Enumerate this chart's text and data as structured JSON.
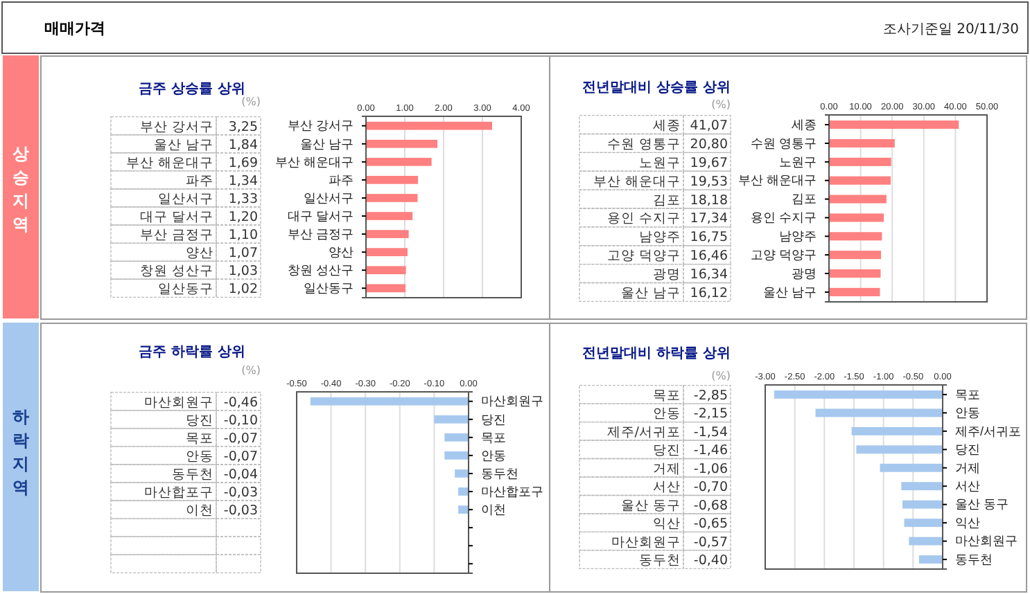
{
  "chart_data": [
    {
      "type": "bar",
      "orientation": "horizontal",
      "title": "금주 상승률 상위",
      "annotations": [
        "(%)",
        "매매가격",
        "조사기준일 20/11/30",
        "상승지역"
      ],
      "categories": [
        "부산 강서구",
        "울산 남구",
        "부산 해운대구",
        "파주",
        "일산서구",
        "대구 달서구",
        "부산 금정구",
        "양산",
        "창원 성산구",
        "일산동구"
      ],
      "values": [
        3.25,
        1.84,
        1.69,
        1.34,
        1.33,
        1.2,
        1.1,
        1.07,
        1.03,
        1.02
      ],
      "value_labels": [
        "3,25",
        "1,84",
        "1,69",
        "1,34",
        "1,33",
        "1,20",
        "1,10",
        "1,07",
        "1,03",
        "1,02"
      ],
      "color": "#ff8080",
      "xlim": [
        0,
        4
      ],
      "xticks": [
        {
          "value": 0,
          "label": "0.00"
        },
        {
          "value": 1,
          "label": "1.00"
        },
        {
          "value": 2,
          "label": "2.00"
        },
        {
          "value": 3,
          "label": "3.00"
        },
        {
          "value": 4,
          "label": "4.00"
        }
      ],
      "grid": "x"
    },
    {
      "type": "bar",
      "orientation": "horizontal",
      "title": "전년말대비 상승률 상위",
      "annotations": [
        "(%)"
      ],
      "categories": [
        "세종",
        "수원 영통구",
        "노원구",
        "부산 해운대구",
        "김포",
        "용인 수지구",
        "남양주",
        "고양 덕양구",
        "광명",
        "울산 남구"
      ],
      "values": [
        41.07,
        20.8,
        19.67,
        19.53,
        18.18,
        17.34,
        16.75,
        16.46,
        16.34,
        16.12
      ],
      "value_labels": [
        "41,07",
        "20,80",
        "19,67",
        "19,53",
        "18,18",
        "17,34",
        "16,75",
        "16,46",
        "16,34",
        "16,12"
      ],
      "color": "#ff8080",
      "xlim": [
        0,
        50
      ],
      "xticks": [
        {
          "value": 0,
          "label": "0.00"
        },
        {
          "value": 10,
          "label": "10.00"
        },
        {
          "value": 20,
          "label": "20.00"
        },
        {
          "value": 30,
          "label": "30.00"
        },
        {
          "value": 40,
          "label": "40.00"
        },
        {
          "value": 50,
          "label": "50.00"
        }
      ],
      "grid": "x"
    },
    {
      "type": "bar",
      "orientation": "horizontal",
      "title": "금주 하락률 상위",
      "annotations": [
        "(%)",
        "하락지역"
      ],
      "categories": [
        "마산회원구",
        "당진",
        "목포",
        "안동",
        "동두천",
        "마산합포구",
        "이천",
        null,
        null,
        null
      ],
      "values": [
        -0.46,
        -0.1,
        -0.07,
        -0.07,
        -0.04,
        -0.03,
        -0.03,
        null,
        null,
        null
      ],
      "value_labels": [
        "-0,46",
        "-0,10",
        "-0,07",
        "-0,07",
        "-0,04",
        "-0,03",
        "-0,03",
        null,
        null,
        null
      ],
      "color": "#a6c8ee",
      "xlim": [
        -0.5,
        0
      ],
      "xticks": [
        {
          "value": -0.5,
          "label": "-0.50"
        },
        {
          "value": -0.4,
          "label": "-0.40"
        },
        {
          "value": -0.3,
          "label": "-0.30"
        },
        {
          "value": -0.2,
          "label": "-0.20"
        },
        {
          "value": -0.1,
          "label": "-0.10"
        },
        {
          "value": 0,
          "label": "0.00"
        }
      ],
      "grid": "x"
    },
    {
      "type": "bar",
      "orientation": "horizontal",
      "title": "전년말대비 하락률 상위",
      "annotations": [
        "(%)"
      ],
      "categories": [
        "목포",
        "안동",
        "제주/서귀포",
        "당진",
        "거제",
        "서산",
        "울산 동구",
        "익산",
        "마산회원구",
        "동두천"
      ],
      "values": [
        -2.85,
        -2.15,
        -1.54,
        -1.46,
        -1.06,
        -0.7,
        -0.68,
        -0.65,
        -0.57,
        -0.4
      ],
      "value_labels": [
        "-2,85",
        "-2,15",
        "-1,54",
        "-1,46",
        "-1,06",
        "-0,70",
        "-0,68",
        "-0,65",
        "-0,57",
        "-0,40"
      ],
      "color": "#a6c8ee",
      "xlim": [
        -3,
        0
      ],
      "xticks": [
        {
          "value": -3,
          "label": "-3.00"
        },
        {
          "value": -2.5,
          "label": "-2.50"
        },
        {
          "value": -2,
          "label": "-2.00"
        },
        {
          "value": -1.5,
          "label": "-1.50"
        },
        {
          "value": -1,
          "label": "-1.00"
        },
        {
          "value": -0.5,
          "label": "-0.50"
        },
        {
          "value": 0,
          "label": "0.00"
        }
      ],
      "grid": "x"
    }
  ]
}
